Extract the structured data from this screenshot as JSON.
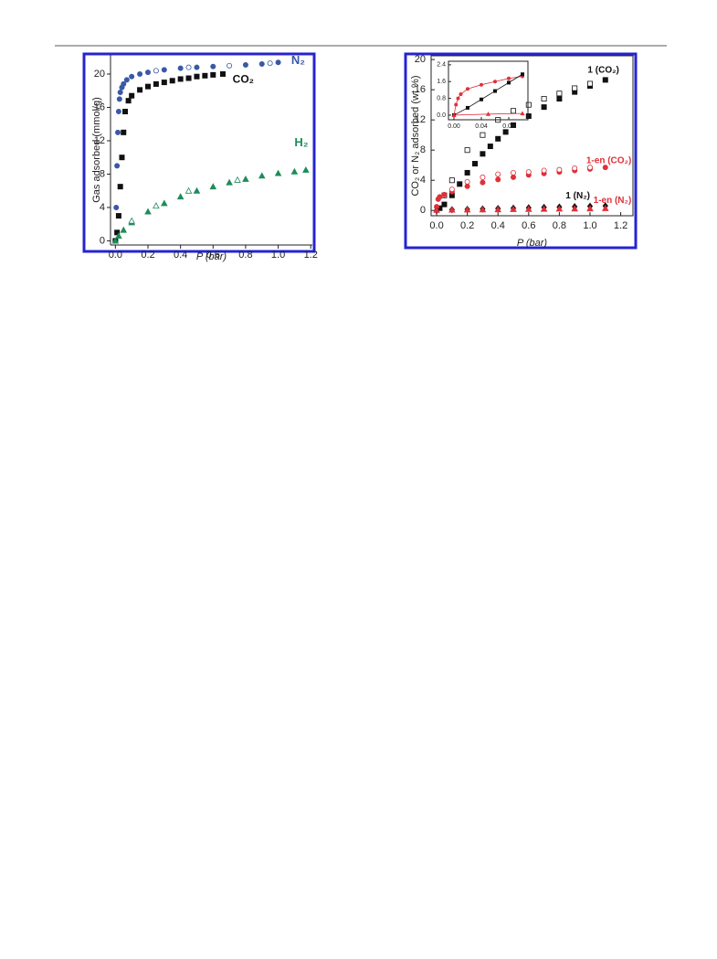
{
  "chart_data": [
    {
      "type": "scatter",
      "x_label": "P (bar)",
      "y_label": "Gas adsorbed (mmol/g)",
      "xlim": [
        -0.03,
        1.21
      ],
      "ylim": [
        -0.5,
        22.3
      ],
      "xticks": [
        {
          "value": 0,
          "label": "0.0"
        },
        0.2,
        0.4,
        0.6,
        0.8,
        {
          "value": 1,
          "label": "1.0"
        },
        1.2
      ],
      "yticks": [
        0,
        4,
        8,
        12,
        16,
        20
      ],
      "frame": false,
      "series": [
        {
          "name": "N₂",
          "color": "#3a58a8",
          "marker": "circle",
          "x": [
            0,
            0.005,
            0.01,
            0.015,
            0.02,
            0.025,
            0.03,
            0.04,
            0.05,
            0.07,
            0.1,
            0.15,
            0.2,
            0.3,
            0.4,
            0.5,
            0.6,
            0.8,
            0.9,
            1.0
          ],
          "values": [
            0,
            4,
            9,
            13,
            15.5,
            17,
            17.8,
            18.4,
            18.8,
            19.3,
            19.7,
            20.0,
            20.2,
            20.5,
            20.7,
            20.8,
            20.9,
            21.1,
            21.2,
            21.4
          ],
          "desorption": {
            "x": [
              0.95,
              0.7,
              0.45,
              0.25
            ],
            "values": [
              21.3,
              21.0,
              20.8,
              20.4
            ]
          }
        },
        {
          "name": "CO₂",
          "color": "#111111",
          "marker": "square",
          "x": [
            0,
            0.01,
            0.02,
            0.03,
            0.04,
            0.05,
            0.06,
            0.08,
            0.1,
            0.15,
            0.2,
            0.25,
            0.3,
            0.35,
            0.4,
            0.45,
            0.5,
            0.55,
            0.6,
            0.66
          ],
          "values": [
            0,
            1,
            3,
            6.5,
            10,
            13,
            15.5,
            16.8,
            17.4,
            18.1,
            18.5,
            18.8,
            19.0,
            19.2,
            19.4,
            19.5,
            19.7,
            19.8,
            19.9,
            20.0
          ]
        },
        {
          "name": "H₂",
          "color": "#1e8c5a",
          "marker": "triangle",
          "x": [
            0,
            0.02,
            0.05,
            0.1,
            0.2,
            0.3,
            0.4,
            0.5,
            0.6,
            0.7,
            0.8,
            0.9,
            1.0,
            1.1,
            1.17
          ],
          "values": [
            0,
            0.6,
            1.3,
            2.2,
            3.5,
            4.5,
            5.3,
            6.0,
            6.5,
            7.0,
            7.4,
            7.8,
            8.1,
            8.3,
            8.5
          ],
          "desorption": {
            "x": [
              0.75,
              0.45,
              0.25,
              0.1
            ],
            "values": [
              7.3,
              6.0,
              4.2,
              2.4
            ]
          }
        }
      ]
    },
    {
      "type": "scatter",
      "x_label": "P (bar)",
      "y_label": "CO₂ or N₂ adsorbed (wt %)",
      "xlim": [
        -0.036,
        1.28
      ],
      "ylim": [
        -0.7,
        20.5
      ],
      "xticks": [
        {
          "value": 0,
          "label": "0.0"
        },
        0.2,
        0.4,
        0.6,
        0.8,
        {
          "value": 1,
          "label": "1.0"
        },
        1.2
      ],
      "yticks": [
        0,
        4,
        8,
        12,
        16,
        20
      ],
      "frame": true,
      "series": [
        {
          "name": "1 (CO₂)",
          "color": "#111111",
          "marker": "square",
          "x": [
            0.02,
            0.05,
            0.1,
            0.15,
            0.2,
            0.25,
            0.3,
            0.35,
            0.4,
            0.45,
            0.5,
            0.6,
            0.7,
            0.8,
            0.9,
            1.0,
            1.1
          ],
          "values": [
            0.3,
            0.8,
            2,
            3.5,
            5,
            6.2,
            7.5,
            8.5,
            9.5,
            10.4,
            11.3,
            12.5,
            13.7,
            14.8,
            15.7,
            16.5,
            17.3
          ],
          "desorption": {
            "x": [
              1.0,
              0.9,
              0.8,
              0.7,
              0.6,
              0.5,
              0.4,
              0.3,
              0.2,
              0.1,
              0.05
            ],
            "values": [
              16.8,
              16.2,
              15.5,
              14.8,
              14.0,
              13.2,
              12.0,
              10.0,
              8.0,
              4.0,
              2.0
            ]
          }
        },
        {
          "name": "1-en (CO₂)",
          "color": "#e0303a",
          "marker": "circle",
          "x": [
            0,
            0.01,
            0.02,
            0.05,
            0.1,
            0.2,
            0.3,
            0.4,
            0.5,
            0.6,
            0.7,
            0.8,
            0.9,
            1.0,
            1.1
          ],
          "values": [
            0.5,
            1.5,
            1.8,
            2.1,
            2.5,
            3.2,
            3.7,
            4.1,
            4.4,
            4.7,
            4.9,
            5.1,
            5.3,
            5.5,
            5.7
          ],
          "desorption": {
            "x": [
              1.0,
              0.9,
              0.8,
              0.7,
              0.6,
              0.5,
              0.4,
              0.3,
              0.2,
              0.1
            ],
            "values": [
              5.7,
              5.6,
              5.4,
              5.3,
              5.1,
              5.0,
              4.8,
              4.4,
              3.8,
              2.8
            ]
          }
        },
        {
          "name": "1 (N₂)",
          "color": "#111111",
          "marker": "diamond",
          "x": [
            0,
            0.1,
            0.2,
            0.3,
            0.4,
            0.5,
            0.6,
            0.7,
            0.8,
            0.9,
            1.0,
            1.1
          ],
          "values": [
            0,
            0.1,
            0.15,
            0.2,
            0.25,
            0.3,
            0.35,
            0.4,
            0.45,
            0.5,
            0.55,
            0.6
          ]
        },
        {
          "name": "1-en (N₂)",
          "color": "#e0303a",
          "marker": "triangle",
          "x": [
            0,
            0.1,
            0.2,
            0.3,
            0.4,
            0.5,
            0.6,
            0.7,
            0.8,
            0.9,
            1.0,
            1.1
          ],
          "values": [
            0.05,
            0.08,
            0.1,
            0.12,
            0.14,
            0.16,
            0.18,
            0.2,
            0.22,
            0.24,
            0.26,
            0.28
          ]
        }
      ]
    },
    {
      "type": "line",
      "xlim": [
        -0.008,
        0.108
      ],
      "ylim": [
        -0.22,
        2.57
      ],
      "xticks": [
        {
          "value": 0,
          "label": "0.00"
        },
        0.04,
        0.08
      ],
      "yticks": [
        {
          "value": 0,
          "label": "0.0"
        },
        0.8,
        1.6,
        2.4
      ],
      "frame": true,
      "series": [
        {
          "color": "#e0303a",
          "marker": "circle",
          "x": [
            0,
            0.003,
            0.006,
            0.01,
            0.02,
            0.04,
            0.06,
            0.08,
            0.1
          ],
          "values": [
            0,
            0.5,
            0.8,
            1.0,
            1.25,
            1.45,
            1.6,
            1.75,
            1.85
          ]
        },
        {
          "color": "#111111",
          "marker": "square",
          "x": [
            0,
            0.02,
            0.04,
            0.06,
            0.08,
            0.1
          ],
          "values": [
            0,
            0.35,
            0.75,
            1.15,
            1.55,
            1.95
          ]
        },
        {
          "color": "#e0303a",
          "marker": "triangle",
          "x": [
            0,
            0.05,
            0.1
          ],
          "values": [
            0,
            0.05,
            0.08
          ]
        }
      ]
    }
  ]
}
